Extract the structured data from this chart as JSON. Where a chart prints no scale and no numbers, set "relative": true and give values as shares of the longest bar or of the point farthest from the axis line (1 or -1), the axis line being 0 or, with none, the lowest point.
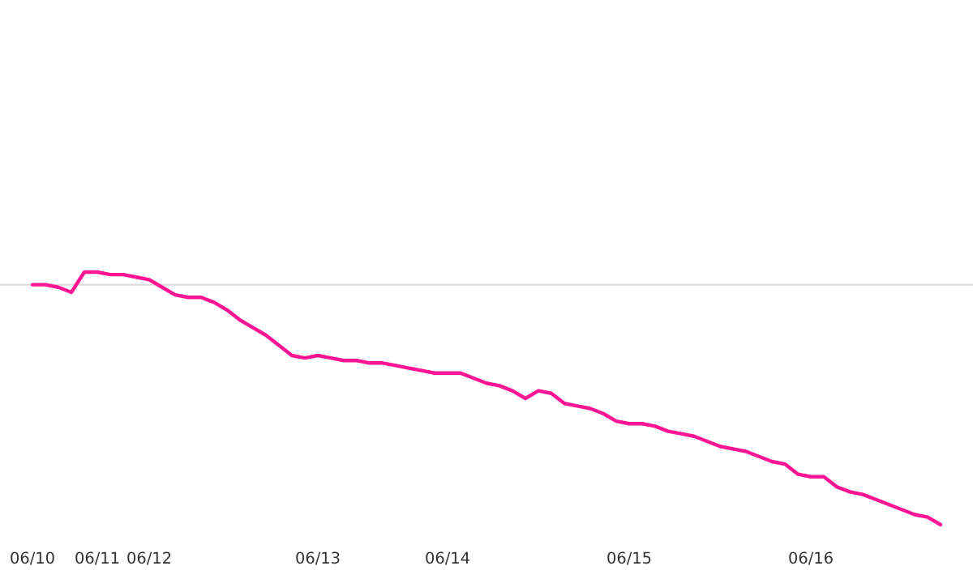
{
  "chart_data": {
    "type": "line",
    "relative": true,
    "categories": [
      "06/10",
      null,
      null,
      null,
      null,
      "06/11",
      null,
      null,
      null,
      "06/12",
      null,
      null,
      null,
      null,
      null,
      null,
      null,
      null,
      null,
      null,
      null,
      null,
      "06/13",
      null,
      null,
      null,
      null,
      null,
      null,
      null,
      null,
      null,
      "06/14",
      null,
      null,
      null,
      null,
      null,
      null,
      null,
      null,
      null,
      null,
      null,
      null,
      null,
      "06/15",
      null,
      null,
      null,
      null,
      null,
      null,
      null,
      null,
      null,
      null,
      null,
      null,
      null,
      "06/16",
      null,
      null,
      null,
      null,
      null,
      null,
      null,
      null,
      null,
      null
    ],
    "series": [
      {
        "color": "#ff1493",
        "values": [
          0.95,
          0.95,
          0.94,
          0.92,
          1,
          1,
          0.99,
          0.99,
          0.98,
          0.97,
          0.94,
          0.91,
          0.9,
          0.9,
          0.88,
          0.85,
          0.81,
          0.78,
          0.75,
          0.71,
          0.67,
          0.66,
          0.67,
          0.66,
          0.65,
          0.65,
          0.64,
          0.64,
          0.63,
          0.62,
          0.61,
          0.6,
          0.6,
          0.6,
          0.58,
          0.56,
          0.55,
          0.53,
          0.5,
          0.53,
          0.52,
          0.48,
          0.47,
          0.46,
          0.44,
          0.41,
          0.4,
          0.4,
          0.39,
          0.37,
          0.36,
          0.35,
          0.33,
          0.31,
          0.3,
          0.29,
          0.27,
          0.25,
          0.24,
          0.2,
          0.19,
          0.19,
          0.15,
          0.13,
          0.12,
          0.1,
          0.08,
          0.06,
          0.04,
          0.03,
          0
        ]
      }
    ],
    "ref_lines": [
      {
        "axis": "y",
        "value": 0.95,
        "color": "#dddddd"
      }
    ],
    "grid": false,
    "marker": "none",
    "line_style": "solid"
  }
}
